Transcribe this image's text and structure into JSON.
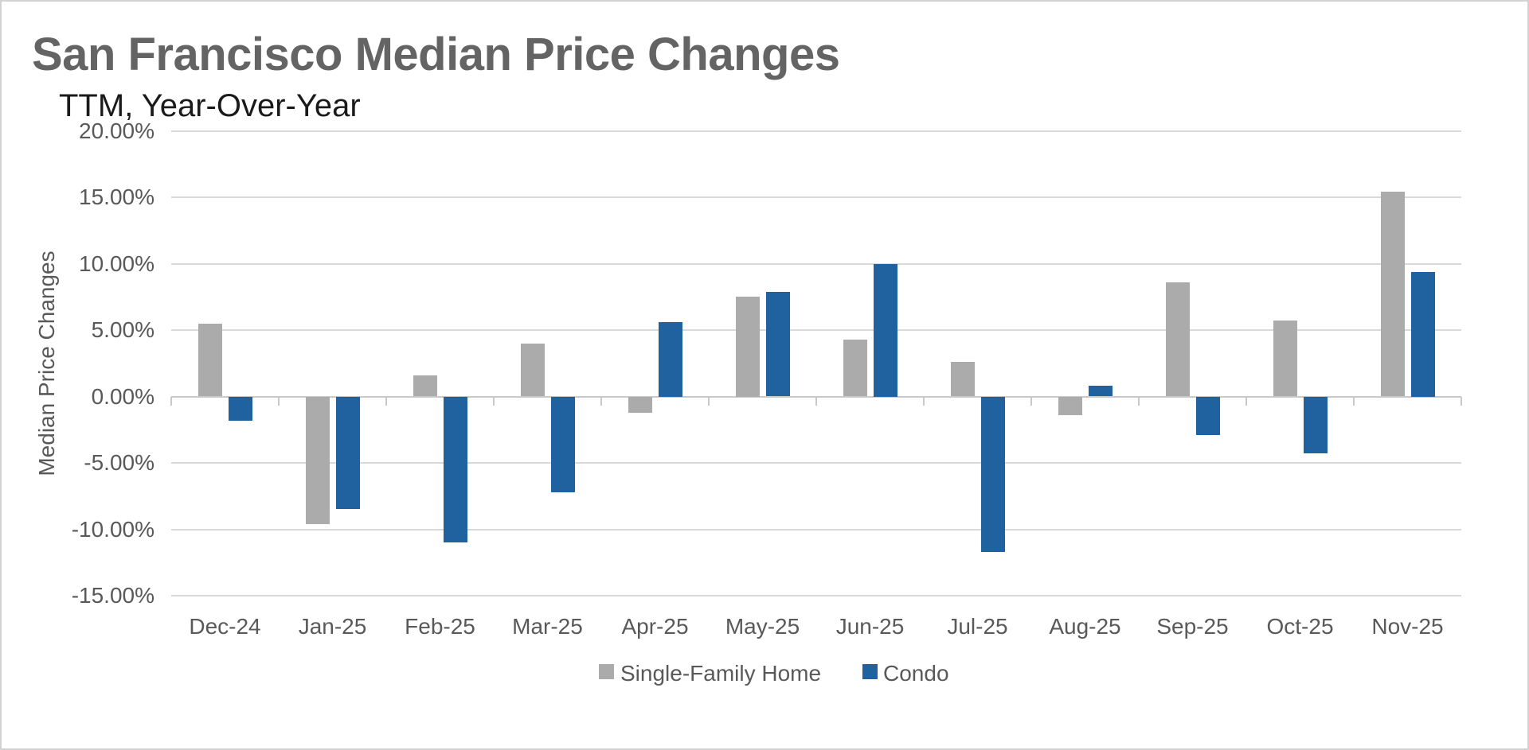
{
  "title": "San Francisco Median Price Changes",
  "subtitle": "TTM, Year-Over-Year",
  "colors": {
    "single_family": "#ABABAB",
    "condo": "#2062A0",
    "gridline": "#D9D9D9",
    "axis_line": "#C9C9C9",
    "title_text": "#646464",
    "subtitle_text": "#1A1A1A",
    "axis_text": "#595959",
    "border": "#D2D2D2"
  },
  "legend": {
    "items": [
      {
        "label": "Single-Family Home",
        "color_key": "single_family"
      },
      {
        "label": "Condo",
        "color_key": "condo"
      }
    ]
  },
  "chart_data": {
    "type": "bar",
    "title": "San Francisco Median Price Changes",
    "subtitle": "TTM, Year-Over-Year",
    "xlabel": "",
    "ylabel": "Median Price Changes",
    "categories": [
      "Dec-24",
      "Jan-25",
      "Feb-25",
      "Mar-25",
      "Apr-25",
      "May-25",
      "Jun-25",
      "Jul-25",
      "Aug-25",
      "Sep-25",
      "Oct-25",
      "Nov-25"
    ],
    "series": [
      {
        "name": "Single-Family Home",
        "color_key": "single_family",
        "values": [
          5.5,
          -9.6,
          1.6,
          4.0,
          -1.2,
          7.5,
          4.3,
          2.6,
          -1.4,
          8.6,
          5.7,
          15.4
        ]
      },
      {
        "name": "Condo",
        "color_key": "condo",
        "values": [
          -1.8,
          -8.5,
          -11.0,
          -7.2,
          5.6,
          7.9,
          10.0,
          -11.7,
          0.8,
          -2.9,
          -4.3,
          9.4
        ]
      }
    ],
    "value_unit": "percent",
    "ylim": [
      -15,
      20
    ],
    "y_ticks": [
      {
        "label": "20.00%",
        "value": 20
      },
      {
        "label": "15.00%",
        "value": 15
      },
      {
        "label": "10.00%",
        "value": 10
      },
      {
        "label": "5.00%",
        "value": 5
      },
      {
        "label": "0.00%",
        "value": 0
      },
      {
        "label": "-5.00%",
        "value": -5
      },
      {
        "label": "-10.00%",
        "value": -10
      },
      {
        "label": "-15.00%",
        "value": -15
      }
    ],
    "grid": true,
    "legend_position": "bottom"
  }
}
